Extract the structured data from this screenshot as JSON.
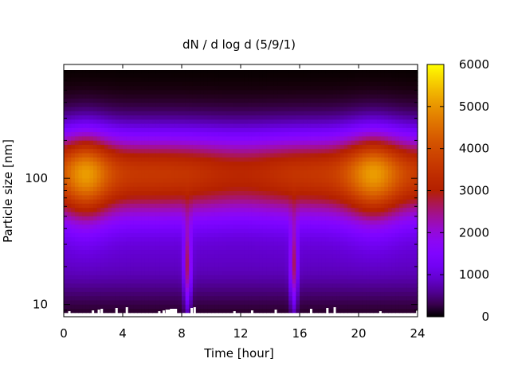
{
  "chart_data": {
    "type": "heatmap",
    "title": "dN / d log d (5/9/1)",
    "xlabel": "Time [hour]",
    "ylabel": "Particle size [nm]",
    "x_range": [
      0,
      24
    ],
    "y_range": [
      8,
      800
    ],
    "y_scale": "log",
    "x_ticks": [
      0,
      4,
      8,
      12,
      16,
      20,
      24
    ],
    "x_tick_labels": [
      "0",
      "4",
      "8",
      "12",
      "16",
      "20",
      "24"
    ],
    "y_ticks": [
      10,
      100
    ],
    "y_tick_labels": [
      "10",
      "100"
    ],
    "colorbar": {
      "range": [
        0,
        6000
      ],
      "ticks": [
        0,
        1000,
        2000,
        3000,
        4000,
        5000,
        6000
      ],
      "tick_labels": [
        "0",
        "1000",
        "2000",
        "3000",
        "4000",
        "5000",
        "6000"
      ],
      "colormap": "gnuplot"
    },
    "description_points": {
      "peak_diameter_nm": 110,
      "peak_times_hour": [
        1.5,
        21
      ],
      "peak_value": 5200,
      "plume_times_hour": [
        8.4,
        15.6
      ],
      "upper_edge_nm": 800,
      "lower_edge_nm": 8.5
    }
  }
}
